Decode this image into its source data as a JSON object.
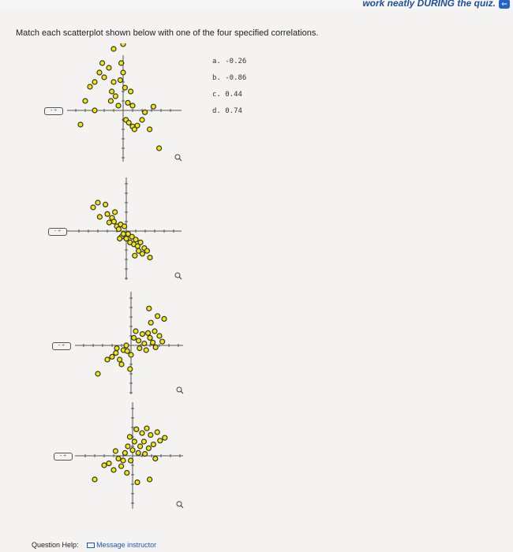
{
  "banner": {
    "text": "work neatly DURING the quiz."
  },
  "instruction": "Match each scatterplot shown below with one of the four specified correlations.",
  "answers": [
    "a. -0.26",
    "b. -0.86",
    "c. 0.44",
    "d. 0.74"
  ],
  "selectors": [
    "- ÷",
    "- ÷",
    "- ÷",
    "- ÷"
  ],
  "magnify_icon": "magnify-icon",
  "footer": {
    "help_label": "Question Help:",
    "message_label": "Message instructor"
  },
  "colors": {
    "point_fill": "#f2e800",
    "point_stroke": "#333333",
    "link": "#1f56b8"
  },
  "chart_data": [
    {
      "type": "scatter",
      "points": [
        [
          -4.5,
          -1.5
        ],
        [
          -4,
          1
        ],
        [
          -3.5,
          2.5
        ],
        [
          -3,
          0
        ],
        [
          -3,
          3
        ],
        [
          -2.5,
          4
        ],
        [
          -2.2,
          5
        ],
        [
          -2,
          3.5
        ],
        [
          -1.5,
          4.5
        ],
        [
          -1.2,
          2
        ],
        [
          -1,
          3
        ],
        [
          -1,
          6.5
        ],
        [
          -0.8,
          1.5
        ],
        [
          -0.5,
          0.5
        ],
        [
          -0.3,
          3.2
        ],
        [
          -0.2,
          5
        ],
        [
          0,
          4
        ],
        [
          0,
          7
        ],
        [
          0.2,
          2.4
        ],
        [
          0.3,
          -1
        ],
        [
          0.5,
          0.8
        ],
        [
          0.6,
          -1.3
        ],
        [
          0.8,
          2
        ],
        [
          1,
          -1.7
        ],
        [
          1,
          0.5
        ],
        [
          1.2,
          -2
        ],
        [
          1.5,
          -1.6
        ],
        [
          2,
          -1
        ],
        [
          2.3,
          -0.2
        ],
        [
          2.8,
          -2
        ],
        [
          3.2,
          0.4
        ],
        [
          3.8,
          -4
        ],
        [
          -1.3,
          1
        ]
      ]
    },
    {
      "type": "scatter",
      "points": [
        [
          -3.5,
          2.5
        ],
        [
          -3,
          3
        ],
        [
          -2.8,
          1.5
        ],
        [
          -2.2,
          2.8
        ],
        [
          -2,
          1.8
        ],
        [
          -1.8,
          0.9
        ],
        [
          -1.5,
          1.4
        ],
        [
          -1.3,
          1
        ],
        [
          -1.2,
          2
        ],
        [
          -1,
          0.5
        ],
        [
          -0.8,
          0.2
        ],
        [
          -0.6,
          0.7
        ],
        [
          -0.5,
          -0.6
        ],
        [
          -0.3,
          -0.3
        ],
        [
          -0.2,
          0.5
        ],
        [
          0,
          -0.8
        ],
        [
          0.2,
          -0.3
        ],
        [
          0.4,
          -1.2
        ],
        [
          0.6,
          -0.6
        ],
        [
          0.8,
          -1.4
        ],
        [
          1,
          -0.9
        ],
        [
          1.2,
          -1.6
        ],
        [
          1.3,
          -2.1
        ],
        [
          1.5,
          -1.2
        ],
        [
          1.7,
          -2.4
        ],
        [
          1.9,
          -1.8
        ],
        [
          2.2,
          -2.1
        ],
        [
          2.5,
          -2.8
        ],
        [
          -0.7,
          -0.8
        ],
        [
          0.9,
          -2.6
        ]
      ]
    },
    {
      "type": "scatter",
      "points": [
        [
          -3.5,
          -3
        ],
        [
          -2.5,
          -1.5
        ],
        [
          -2,
          -1.2
        ],
        [
          -1.6,
          -0.8
        ],
        [
          -1.5,
          -0.3
        ],
        [
          -1.2,
          -1.5
        ],
        [
          -1,
          -2
        ],
        [
          -0.8,
          -0.5
        ],
        [
          -0.5,
          0
        ],
        [
          -0.4,
          -0.6
        ],
        [
          0,
          -1
        ],
        [
          0.3,
          0.8
        ],
        [
          0.5,
          1.5
        ],
        [
          0.8,
          0.5
        ],
        [
          0.9,
          -0.3
        ],
        [
          1.2,
          1.2
        ],
        [
          1.4,
          0.2
        ],
        [
          1.6,
          -0.5
        ],
        [
          1.8,
          1.3
        ],
        [
          2,
          0.8
        ],
        [
          2.1,
          2.4
        ],
        [
          2.3,
          0.3
        ],
        [
          2.5,
          1.5
        ],
        [
          2.6,
          -0.2
        ],
        [
          2.8,
          3.1
        ],
        [
          3,
          1
        ],
        [
          3.3,
          0.4
        ],
        [
          3.5,
          2.8
        ],
        [
          -0.1,
          -2.5
        ],
        [
          1.9,
          3.9
        ]
      ]
    },
    {
      "type": "scatter",
      "points": [
        [
          -4,
          -2.5
        ],
        [
          -3,
          -1
        ],
        [
          -2.5,
          -0.8
        ],
        [
          -2,
          -1.5
        ],
        [
          -1.8,
          0.5
        ],
        [
          -1.5,
          -0.3
        ],
        [
          -1.2,
          -1.1
        ],
        [
          -1,
          -0.5
        ],
        [
          -0.8,
          0.3
        ],
        [
          -0.5,
          1
        ],
        [
          -0.3,
          2
        ],
        [
          -0.2,
          -0.5
        ],
        [
          0,
          0.6
        ],
        [
          0.2,
          1.5
        ],
        [
          0.4,
          2.8
        ],
        [
          0.6,
          0.3
        ],
        [
          0.8,
          1
        ],
        [
          1,
          2.4
        ],
        [
          1.2,
          1.5
        ],
        [
          1.3,
          0.2
        ],
        [
          1.5,
          2.9
        ],
        [
          1.7,
          0.8
        ],
        [
          1.9,
          2.2
        ],
        [
          2.2,
          1.2
        ],
        [
          2.4,
          -0.3
        ],
        [
          2.6,
          2.5
        ],
        [
          2.9,
          1.6
        ],
        [
          3.4,
          1.9
        ],
        [
          0.5,
          -2.8
        ],
        [
          1.8,
          -2.5
        ],
        [
          -0.6,
          -1.8
        ]
      ]
    }
  ]
}
